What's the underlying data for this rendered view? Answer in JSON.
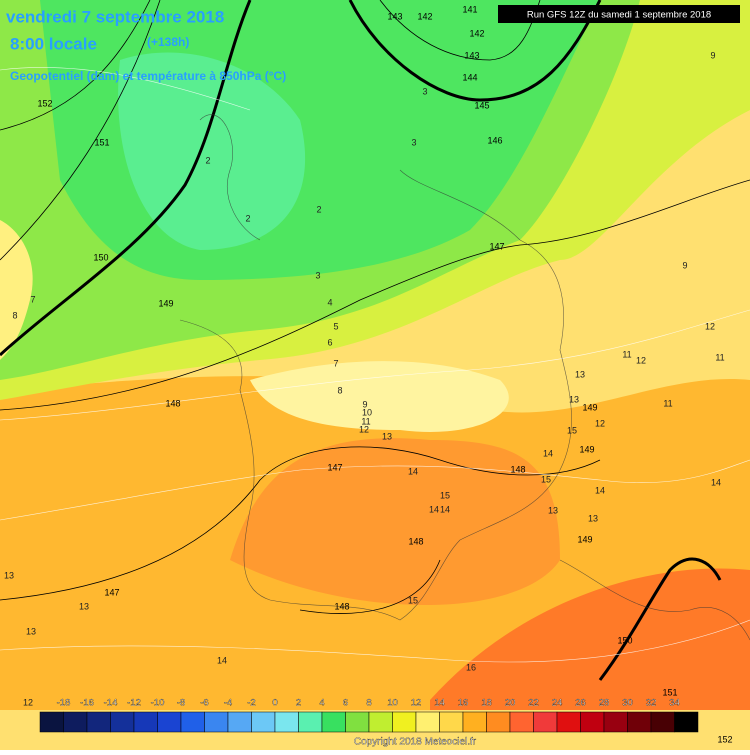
{
  "header": {
    "date": "vendredi 7 septembre 2018",
    "time": "8:00 locale",
    "lead": "(+138h)",
    "field": "Geopotentiel (dam) et température à 850hPa (°C)",
    "run": "Run GFS 12Z du samedi 1 septembre 2018"
  },
  "contour_labels": {
    "geopotential": [
      143,
      142,
      141,
      142,
      143,
      144,
      145,
      146,
      147,
      152,
      151,
      150,
      149,
      148,
      147,
      148,
      149,
      149,
      149,
      148,
      148,
      147,
      150,
      151,
      152
    ],
    "temperature": [
      2,
      2,
      2,
      3,
      3,
      3,
      4,
      5,
      6,
      7,
      8,
      9,
      10,
      11,
      12,
      13,
      14,
      15,
      14,
      14,
      15,
      16,
      13,
      12,
      11,
      11,
      12,
      9,
      9,
      7,
      8,
      13,
      13,
      13,
      14,
      12,
      15,
      13,
      13,
      14,
      14,
      12,
      11,
      13,
      15,
      14
    ]
  },
  "colorbar": {
    "labels": [
      -18,
      -16,
      -14,
      -12,
      -10,
      -8,
      -6,
      -4,
      -2,
      0,
      2,
      4,
      6,
      8,
      10,
      12,
      14,
      16,
      18,
      20,
      22,
      24,
      26,
      28,
      30,
      32,
      34
    ],
    "colors": [
      "#0a1440",
      "#0e1c5e",
      "#12267c",
      "#14309a",
      "#1638b8",
      "#1a44d2",
      "#2060e8",
      "#3a86f0",
      "#56a8f4",
      "#6cc8f6",
      "#7ae6ee",
      "#5af0b0",
      "#38e060",
      "#80e040",
      "#c0ee30",
      "#f0f020",
      "#fff070",
      "#ffd84a",
      "#ffb020",
      "#ff8c20",
      "#ff6430",
      "#f03a3a",
      "#e01010",
      "#c00010",
      "#980010",
      "#700008",
      "#480004",
      "#000000"
    ]
  },
  "copyright": "Copyright 2018 Meteociel.fr"
}
